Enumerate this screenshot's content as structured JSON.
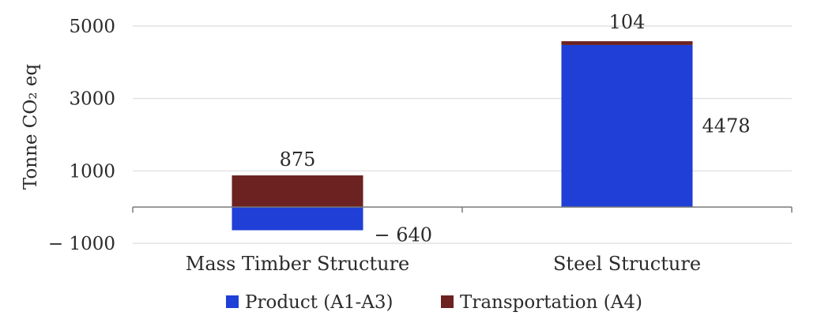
{
  "chart_data": {
    "type": "bar",
    "stacked": true,
    "ylabel": "Tonne CO₂ eq",
    "ylim": [
      -1000,
      5000
    ],
    "yticks": [
      -1000,
      1000,
      3000,
      5000
    ],
    "ytick_labels": [
      "− 1000",
      "1000",
      "3000",
      "5000"
    ],
    "grid": true,
    "legend_position": "bottom",
    "categories": [
      "Mass Timber Structure",
      "Steel Structure"
    ],
    "series": [
      {
        "name": "Product (A1-A3)",
        "color": "#1f3fd6",
        "values": [
          -640,
          4478
        ],
        "value_labels": [
          "− 640",
          "4478"
        ]
      },
      {
        "name": "Transportation (A4)",
        "color": "#6b2220",
        "values": [
          875,
          104
        ],
        "value_labels": [
          "875",
          "104"
        ]
      }
    ]
  }
}
